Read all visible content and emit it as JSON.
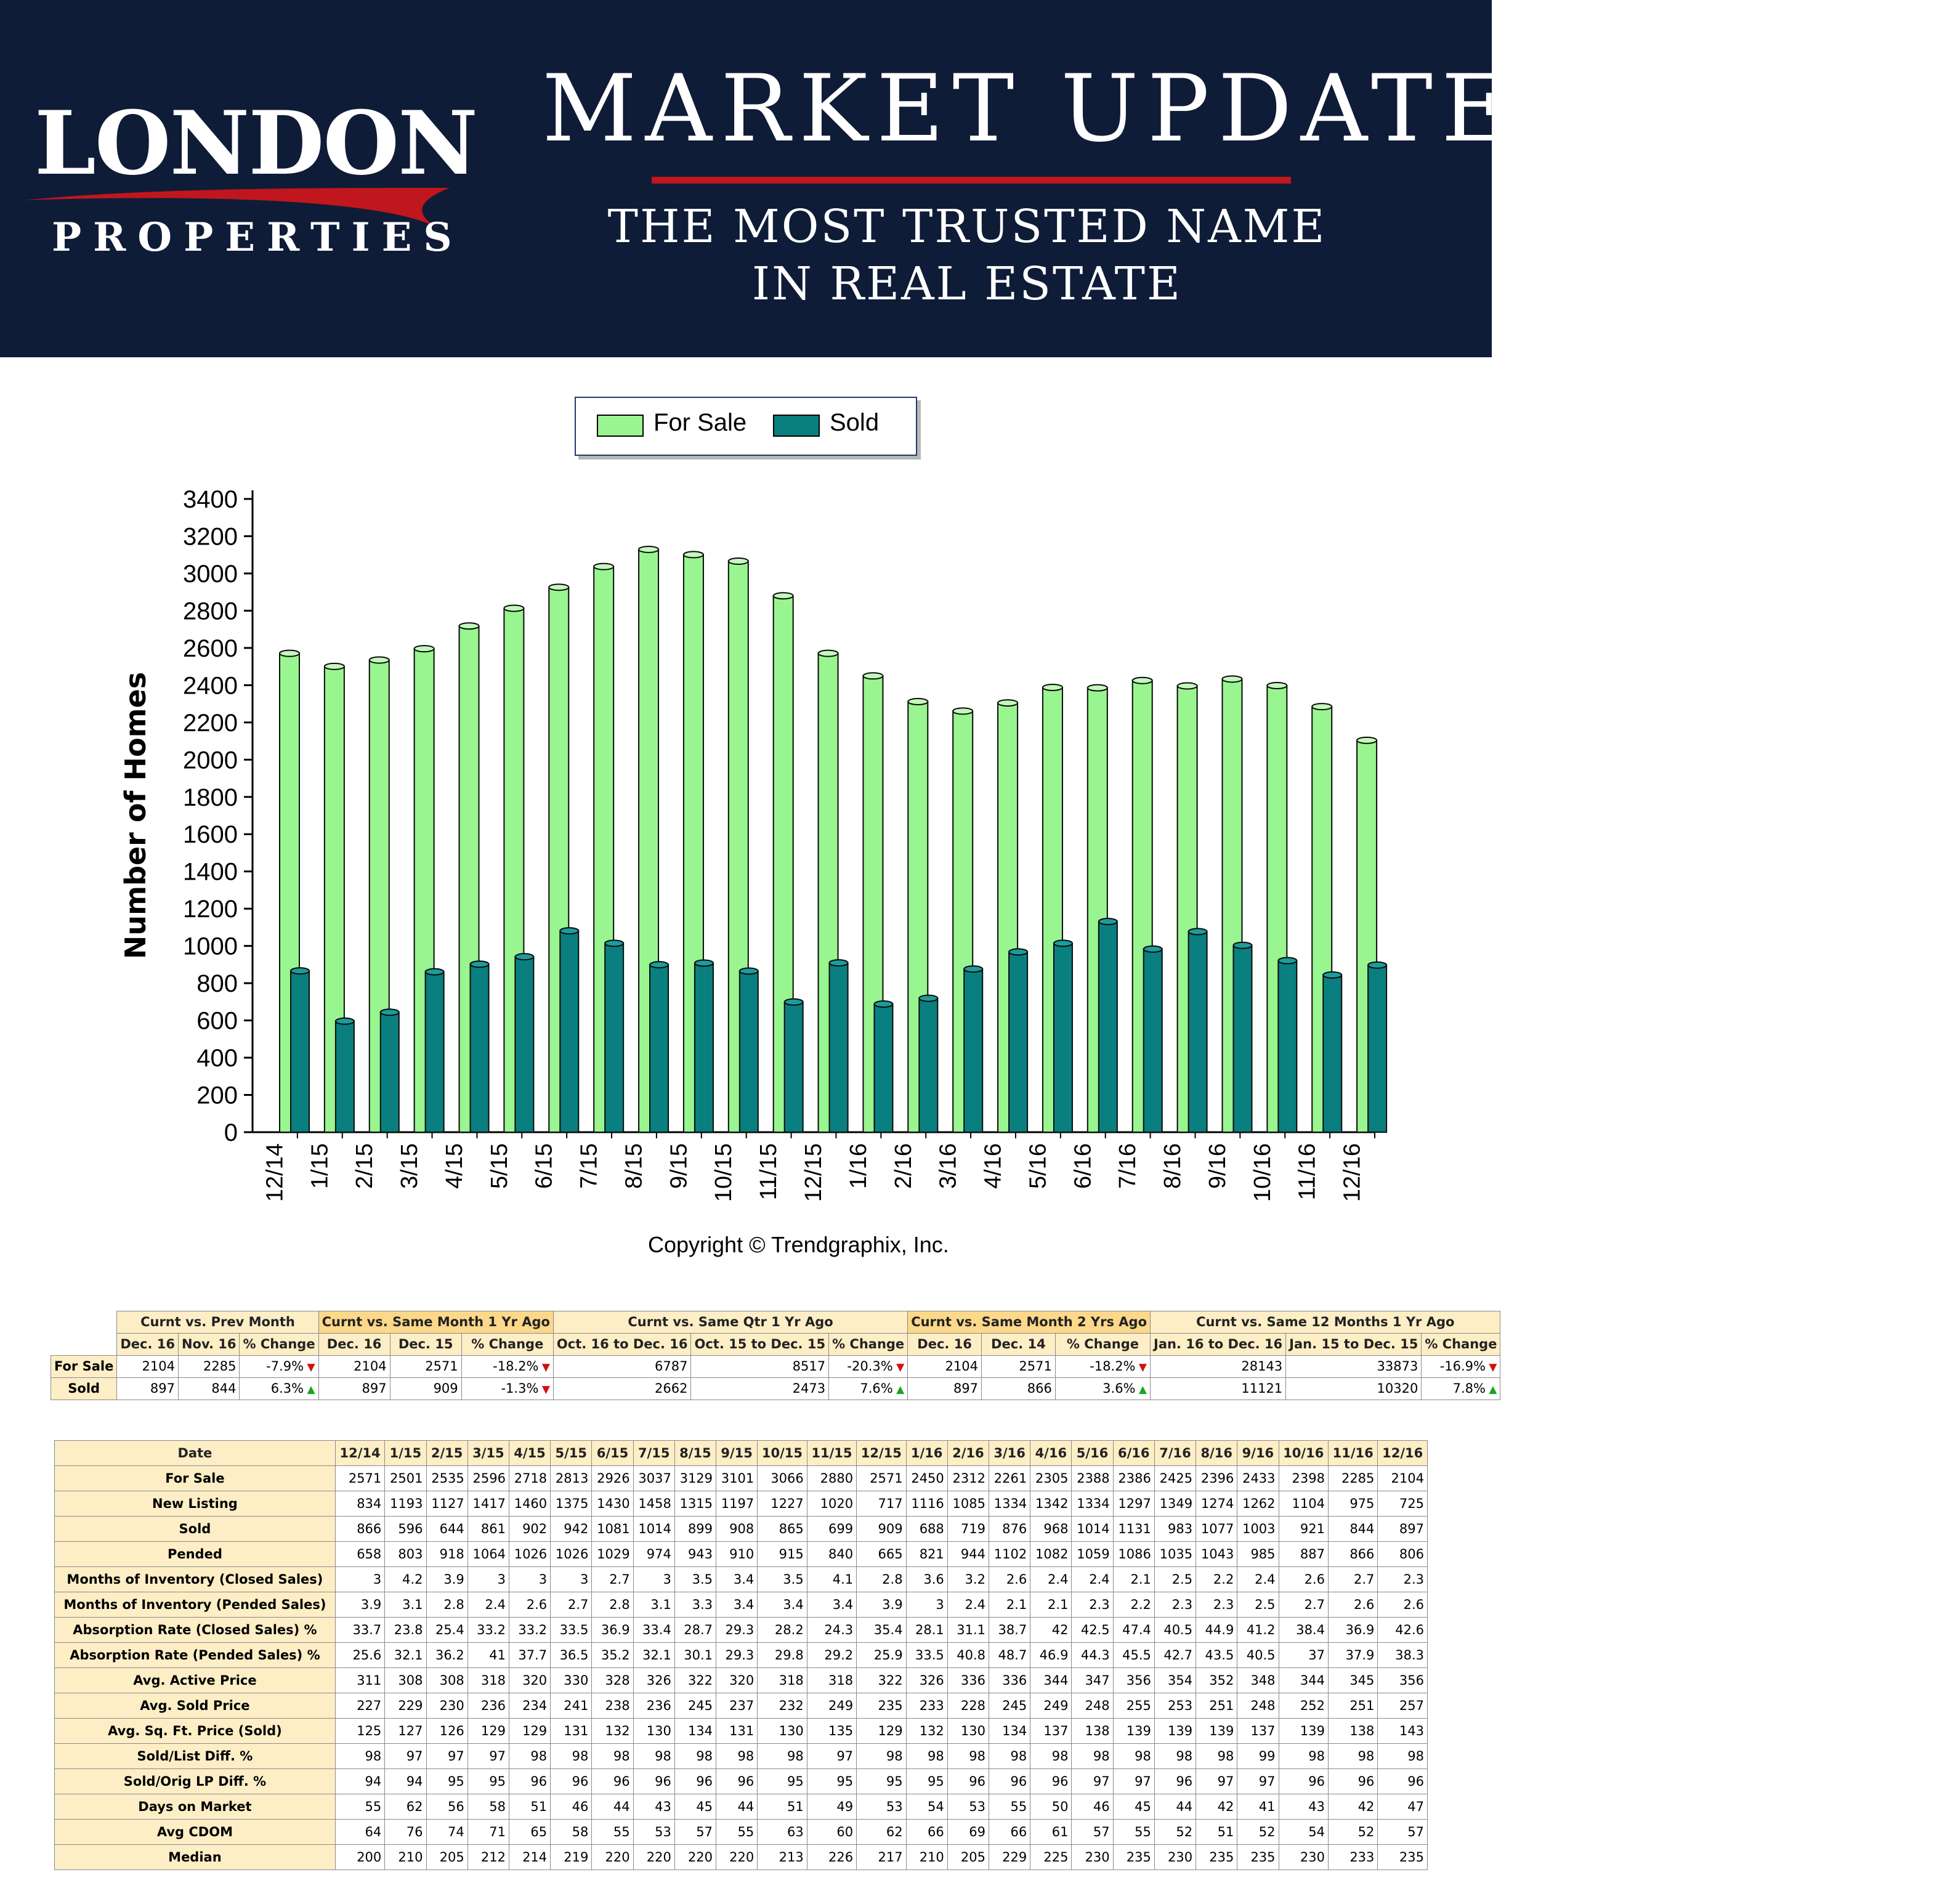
{
  "header": {
    "logo_main": "LONDON",
    "logo_sub": "PROPERTIES",
    "title": "MARKET UPDATE",
    "tagline_line1": "THE MOST TRUSTED NAME",
    "tagline_line2": "IN REAL ESTATE",
    "colors": {
      "banner": "#0f1c38",
      "accent_red": "#c0161d"
    }
  },
  "chart_data": {
    "type": "bar",
    "categories": [
      "12/14",
      "1/15",
      "2/15",
      "3/15",
      "4/15",
      "5/15",
      "6/15",
      "7/15",
      "8/15",
      "9/15",
      "10/15",
      "11/15",
      "12/15",
      "1/16",
      "2/16",
      "3/16",
      "4/16",
      "5/16",
      "6/16",
      "7/16",
      "8/16",
      "9/16",
      "10/16",
      "11/16",
      "12/16"
    ],
    "series": [
      {
        "name": "For Sale",
        "color": "#99f58f",
        "values": [
          2571,
          2501,
          2535,
          2596,
          2718,
          2813,
          2926,
          3037,
          3129,
          3101,
          3066,
          2880,
          2571,
          2450,
          2312,
          2261,
          2305,
          2388,
          2386,
          2425,
          2396,
          2433,
          2398,
          2285,
          2104
        ]
      },
      {
        "name": "Sold",
        "color": "#0a7f7f",
        "values": [
          866,
          596,
          644,
          861,
          902,
          942,
          1081,
          1014,
          899,
          908,
          865,
          699,
          909,
          688,
          719,
          876,
          968,
          1014,
          1131,
          983,
          1077,
          1003,
          921,
          844,
          897
        ]
      }
    ],
    "ylabel": "Number of Homes",
    "xlabel": "",
    "ylim": [
      0,
      3400
    ],
    "yticks": [
      0,
      200,
      400,
      600,
      800,
      1000,
      1200,
      1400,
      1600,
      1800,
      2000,
      2200,
      2400,
      2600,
      2800,
      3000,
      3200,
      3400
    ],
    "legend": "top-center",
    "grid": false,
    "copyright": "Copyright © Trendgraphix, Inc."
  },
  "summary_table": {
    "groups": [
      {
        "label": "Curnt vs. Prev Month",
        "highlight": false,
        "cols": [
          "Dec. 16",
          "Nov. 16",
          "% Change"
        ]
      },
      {
        "label": "Curnt vs. Same Month 1 Yr Ago",
        "highlight": true,
        "cols": [
          "Dec. 16",
          "Dec. 15",
          "% Change"
        ]
      },
      {
        "label": "Curnt vs. Same Qtr 1 Yr Ago",
        "highlight": false,
        "cols": [
          "Oct. 16 to Dec. 16",
          "Oct. 15 to Dec. 15",
          "% Change"
        ]
      },
      {
        "label": "Curnt vs. Same Month 2 Yrs Ago",
        "highlight": true,
        "cols": [
          "Dec. 16",
          "Dec. 14",
          "% Change"
        ]
      },
      {
        "label": "Curnt vs. Same 12 Months 1 Yr Ago",
        "highlight": false,
        "cols": [
          "Jan. 16 to Dec. 16",
          "Jan. 15 to Dec. 15",
          "% Change"
        ]
      }
    ],
    "rows": [
      {
        "label": "For Sale",
        "cells": [
          "2104",
          "2285",
          "-7.9%",
          "2104",
          "2571",
          "-18.2%",
          "6787",
          "8517",
          "-20.3%",
          "2104",
          "2571",
          "-18.2%",
          "28143",
          "33873",
          "-16.9%"
        ],
        "dirs": [
          "down",
          "down",
          "down",
          "down",
          "down"
        ]
      },
      {
        "label": "Sold",
        "cells": [
          "897",
          "844",
          "6.3%",
          "897",
          "909",
          "-1.3%",
          "2662",
          "2473",
          "7.6%",
          "897",
          "866",
          "3.6%",
          "11121",
          "10320",
          "7.8%"
        ],
        "dirs": [
          "up",
          "down",
          "up",
          "up",
          "up"
        ]
      }
    ]
  },
  "detail_table": {
    "header_label": "Date",
    "months": [
      "12/14",
      "1/15",
      "2/15",
      "3/15",
      "4/15",
      "5/15",
      "6/15",
      "7/15",
      "8/15",
      "9/15",
      "10/15",
      "11/15",
      "12/15",
      "1/16",
      "2/16",
      "3/16",
      "4/16",
      "5/16",
      "6/16",
      "7/16",
      "8/16",
      "9/16",
      "10/16",
      "11/16",
      "12/16"
    ],
    "rows": [
      {
        "label": "For Sale",
        "values": [
          "2571",
          "2501",
          "2535",
          "2596",
          "2718",
          "2813",
          "2926",
          "3037",
          "3129",
          "3101",
          "3066",
          "2880",
          "2571",
          "2450",
          "2312",
          "2261",
          "2305",
          "2388",
          "2386",
          "2425",
          "2396",
          "2433",
          "2398",
          "2285",
          "2104"
        ]
      },
      {
        "label": "New Listing",
        "values": [
          "834",
          "1193",
          "1127",
          "1417",
          "1460",
          "1375",
          "1430",
          "1458",
          "1315",
          "1197",
          "1227",
          "1020",
          "717",
          "1116",
          "1085",
          "1334",
          "1342",
          "1334",
          "1297",
          "1349",
          "1274",
          "1262",
          "1104",
          "975",
          "725"
        ]
      },
      {
        "label": "Sold",
        "values": [
          "866",
          "596",
          "644",
          "861",
          "902",
          "942",
          "1081",
          "1014",
          "899",
          "908",
          "865",
          "699",
          "909",
          "688",
          "719",
          "876",
          "968",
          "1014",
          "1131",
          "983",
          "1077",
          "1003",
          "921",
          "844",
          "897"
        ]
      },
      {
        "label": "Pended",
        "values": [
          "658",
          "803",
          "918",
          "1064",
          "1026",
          "1026",
          "1029",
          "974",
          "943",
          "910",
          "915",
          "840",
          "665",
          "821",
          "944",
          "1102",
          "1082",
          "1059",
          "1086",
          "1035",
          "1043",
          "985",
          "887",
          "866",
          "806"
        ]
      },
      {
        "label": "Months of Inventory (Closed Sales)",
        "values": [
          "3",
          "4.2",
          "3.9",
          "3",
          "3",
          "3",
          "2.7",
          "3",
          "3.5",
          "3.4",
          "3.5",
          "4.1",
          "2.8",
          "3.6",
          "3.2",
          "2.6",
          "2.4",
          "2.4",
          "2.1",
          "2.5",
          "2.2",
          "2.4",
          "2.6",
          "2.7",
          "2.3"
        ]
      },
      {
        "label": "Months of Inventory (Pended Sales)",
        "values": [
          "3.9",
          "3.1",
          "2.8",
          "2.4",
          "2.6",
          "2.7",
          "2.8",
          "3.1",
          "3.3",
          "3.4",
          "3.4",
          "3.4",
          "3.9",
          "3",
          "2.4",
          "2.1",
          "2.1",
          "2.3",
          "2.2",
          "2.3",
          "2.3",
          "2.5",
          "2.7",
          "2.6",
          "2.6"
        ]
      },
      {
        "label": "Absorption Rate (Closed Sales) %",
        "values": [
          "33.7",
          "23.8",
          "25.4",
          "33.2",
          "33.2",
          "33.5",
          "36.9",
          "33.4",
          "28.7",
          "29.3",
          "28.2",
          "24.3",
          "35.4",
          "28.1",
          "31.1",
          "38.7",
          "42",
          "42.5",
          "47.4",
          "40.5",
          "44.9",
          "41.2",
          "38.4",
          "36.9",
          "42.6"
        ]
      },
      {
        "label": "Absorption Rate (Pended Sales) %",
        "values": [
          "25.6",
          "32.1",
          "36.2",
          "41",
          "37.7",
          "36.5",
          "35.2",
          "32.1",
          "30.1",
          "29.3",
          "29.8",
          "29.2",
          "25.9",
          "33.5",
          "40.8",
          "48.7",
          "46.9",
          "44.3",
          "45.5",
          "42.7",
          "43.5",
          "40.5",
          "37",
          "37.9",
          "38.3"
        ]
      },
      {
        "label": "Avg. Active Price",
        "values": [
          "311",
          "308",
          "308",
          "318",
          "320",
          "330",
          "328",
          "326",
          "322",
          "320",
          "318",
          "318",
          "322",
          "326",
          "336",
          "336",
          "344",
          "347",
          "356",
          "354",
          "352",
          "348",
          "344",
          "345",
          "356"
        ]
      },
      {
        "label": "Avg. Sold Price",
        "values": [
          "227",
          "229",
          "230",
          "236",
          "234",
          "241",
          "238",
          "236",
          "245",
          "237",
          "232",
          "249",
          "235",
          "233",
          "228",
          "245",
          "249",
          "248",
          "255",
          "253",
          "251",
          "248",
          "252",
          "251",
          "257"
        ]
      },
      {
        "label": "Avg. Sq. Ft. Price (Sold)",
        "values": [
          "125",
          "127",
          "126",
          "129",
          "129",
          "131",
          "132",
          "130",
          "134",
          "131",
          "130",
          "135",
          "129",
          "132",
          "130",
          "134",
          "137",
          "138",
          "139",
          "139",
          "139",
          "137",
          "139",
          "138",
          "143"
        ]
      },
      {
        "label": "Sold/List Diff. %",
        "values": [
          "98",
          "97",
          "97",
          "97",
          "98",
          "98",
          "98",
          "98",
          "98",
          "98",
          "98",
          "97",
          "98",
          "98",
          "98",
          "98",
          "98",
          "98",
          "98",
          "98",
          "98",
          "99",
          "98",
          "98",
          "98"
        ]
      },
      {
        "label": "Sold/Orig LP Diff. %",
        "values": [
          "94",
          "94",
          "95",
          "95",
          "96",
          "96",
          "96",
          "96",
          "96",
          "96",
          "95",
          "95",
          "95",
          "95",
          "96",
          "96",
          "96",
          "97",
          "97",
          "96",
          "97",
          "97",
          "96",
          "96",
          "96"
        ]
      },
      {
        "label": "Days on Market",
        "values": [
          "55",
          "62",
          "56",
          "58",
          "51",
          "46",
          "44",
          "43",
          "45",
          "44",
          "51",
          "49",
          "53",
          "54",
          "53",
          "55",
          "50",
          "46",
          "45",
          "44",
          "42",
          "41",
          "43",
          "42",
          "47"
        ]
      },
      {
        "label": "Avg CDOM",
        "values": [
          "64",
          "76",
          "74",
          "71",
          "65",
          "58",
          "55",
          "53",
          "57",
          "55",
          "63",
          "60",
          "62",
          "66",
          "69",
          "66",
          "61",
          "57",
          "55",
          "52",
          "51",
          "52",
          "54",
          "52",
          "57"
        ]
      },
      {
        "label": "Median",
        "values": [
          "200",
          "210",
          "205",
          "212",
          "214",
          "219",
          "220",
          "220",
          "220",
          "220",
          "213",
          "226",
          "217",
          "210",
          "205",
          "229",
          "225",
          "230",
          "235",
          "230",
          "235",
          "235",
          "230",
          "233",
          "235"
        ]
      }
    ]
  }
}
